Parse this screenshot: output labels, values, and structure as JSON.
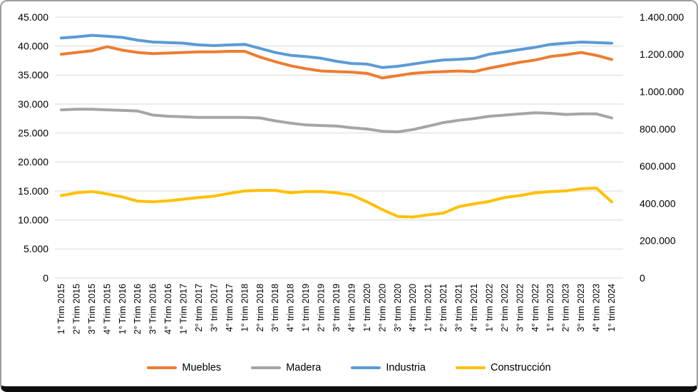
{
  "chart_data": {
    "type": "line",
    "title": "",
    "grid": true,
    "legend_position": "bottom",
    "categories": [
      "1° Trim 2015",
      "2° Trim 2015",
      "3° Trim 2015",
      "4° Trim 2015",
      "1° Trim 2016",
      "2° Trim 2016",
      "3° Trim 2016",
      "4° Trim 2016",
      "1° Trim 2017",
      "2° trim 2017",
      "3° trim 2017",
      "4° trim 2017",
      "1° trim 2018",
      "2° trim 2018",
      "3° trim 2018",
      "4° trim 2018",
      "1° trim 2019",
      "2° trim 2019",
      "3° trim 2019",
      "4° trim 2019",
      "1° trim 2020",
      "2° trim 2020",
      "3° trim 2020",
      "4° trim 2020",
      "1° trim 2021",
      "2° trim 2021",
      "3° trim 2021",
      "4° trim 2021",
      "1° trim 2022",
      "2° trim 2022",
      "3° trim 2022",
      "4° trim 2022",
      "1° trim 2023",
      "2° trim 2023",
      "3° trim 2023",
      "4° trim 2023",
      "1° trim 2024"
    ],
    "left_axis": {
      "min": 0,
      "max": 45000,
      "tick_labels": [
        "0",
        "5.000",
        "10.000",
        "15.000",
        "20.000",
        "25.000",
        "30.000",
        "35.000",
        "40.000",
        "45.000"
      ]
    },
    "right_axis": {
      "min": 0,
      "max": 1400000,
      "tick_labels": [
        "0",
        "200.000",
        "400.000",
        "600.000",
        "800.000",
        "1.000.000",
        "1.200.000",
        "1.400.000"
      ]
    },
    "series": [
      {
        "name": "Muebles",
        "color": "#ED7D31",
        "axis": "left",
        "values": [
          38600,
          38900,
          39200,
          39900,
          39300,
          38900,
          38700,
          38800,
          38900,
          39000,
          39000,
          39100,
          39100,
          38100,
          37300,
          36600,
          36100,
          35700,
          35600,
          35500,
          35300,
          34500,
          34900,
          35300,
          35500,
          35600,
          35700,
          35600,
          36200,
          36700,
          37200,
          37600,
          38200,
          38500,
          38900,
          38400,
          37700
        ]
      },
      {
        "name": "Madera",
        "color": "#A5A5A5",
        "axis": "left",
        "values": [
          29000,
          29100,
          29100,
          29000,
          28900,
          28800,
          28100,
          27900,
          27800,
          27700,
          27700,
          27700,
          27700,
          27600,
          27100,
          26700,
          26400,
          26300,
          26200,
          25900,
          25700,
          25300,
          25200,
          25600,
          26200,
          26800,
          27200,
          27500,
          27900,
          28100,
          28300,
          28500,
          28400,
          28200,
          28300,
          28300,
          27600
        ]
      },
      {
        "name": "Industria",
        "color": "#5B9BD5",
        "axis": "right",
        "values": [
          1288000,
          1294000,
          1302000,
          1297000,
          1291000,
          1276000,
          1266000,
          1263000,
          1260000,
          1251000,
          1247000,
          1251000,
          1254000,
          1232000,
          1210000,
          1195000,
          1188000,
          1179000,
          1163000,
          1151000,
          1148000,
          1129000,
          1136000,
          1148000,
          1160000,
          1170000,
          1173000,
          1179000,
          1201000,
          1213000,
          1226000,
          1238000,
          1254000,
          1260000,
          1266000,
          1263000,
          1260000
        ]
      },
      {
        "name": "Construcción",
        "color": "#FFC000",
        "axis": "right",
        "values": [
          442000,
          457000,
          464000,
          451000,
          435000,
          412000,
          409000,
          414000,
          423000,
          432000,
          439000,
          454000,
          467000,
          470000,
          470000,
          457000,
          464000,
          464000,
          457000,
          445000,
          408000,
          367000,
          330000,
          327000,
          339000,
          348000,
          383000,
          398000,
          411000,
          432000,
          442000,
          457000,
          464000,
          467000,
          479000,
          482000,
          408000
        ]
      }
    ]
  }
}
